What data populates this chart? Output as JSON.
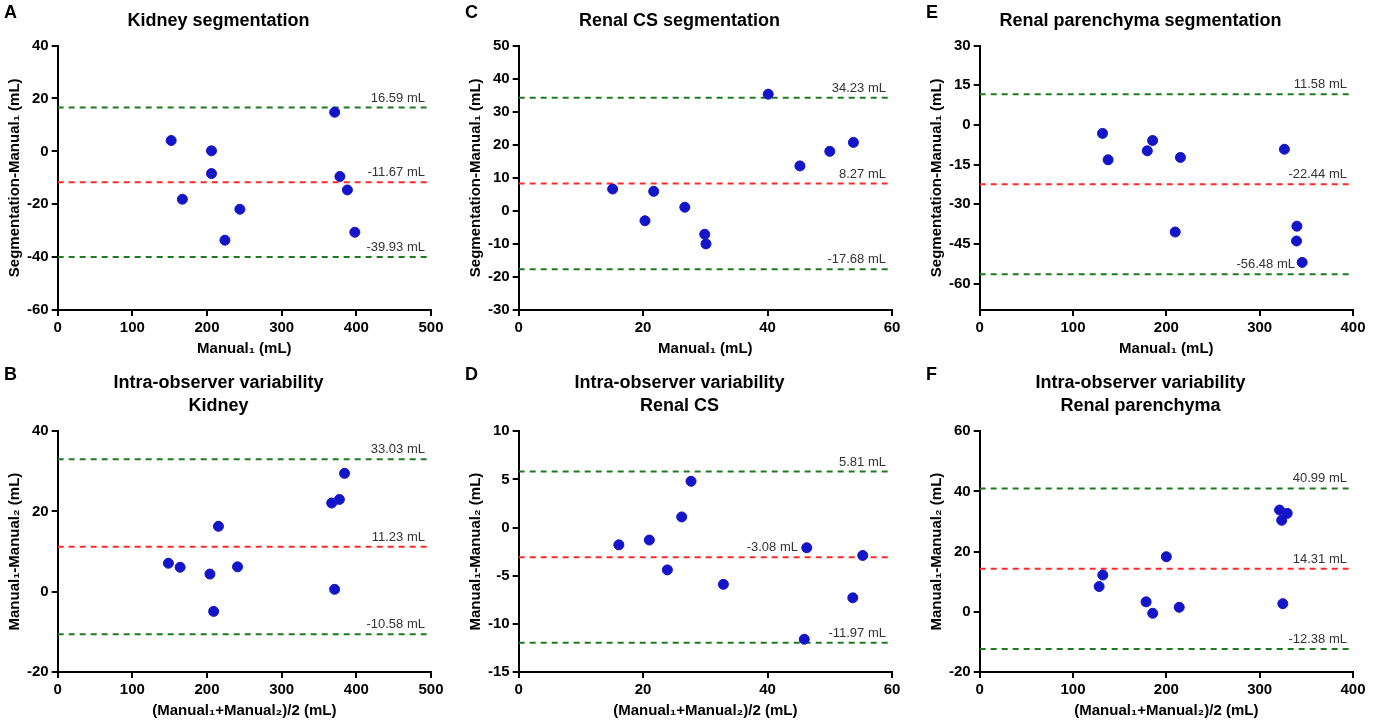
{
  "chart_data": [
    {
      "type": "scatter",
      "title": "Kidney segmentation",
      "xlabel": "Manual₁ (mL)",
      "ylabel": "Segmentation-Manual₁ (mL)",
      "annotations": [
        "A"
      ],
      "x": [
        152,
        167,
        206,
        206,
        224,
        244,
        371,
        378,
        388,
        398
      ],
      "values": [
        4.1,
        -18.1,
        0.2,
        -8.4,
        -33.6,
        -21.9,
        14.8,
        -9.5,
        -14.6,
        -30.6
      ],
      "color": "#1414c8",
      "marker": "circle",
      "grid": false,
      "legend": false,
      "xlim": [
        0,
        500
      ],
      "xticks": [
        0,
        100,
        200,
        300,
        400,
        500
      ],
      "ylim": [
        -60,
        40
      ],
      "yticks": [
        -60,
        -40,
        -20,
        0,
        20,
        40
      ],
      "ref_lines": [
        {
          "axis": "y",
          "value": 16.59,
          "label": "16.59 mL",
          "color": "#1e7a1e",
          "line_style": "dashed"
        },
        {
          "axis": "y",
          "value": -11.67,
          "label": "-11.67 mL",
          "color": "#ff2a2a",
          "line_style": "dashed"
        },
        {
          "axis": "y",
          "value": -39.93,
          "label": "-39.93 mL",
          "color": "#1e7a1e",
          "line_style": "dashed"
        }
      ]
    },
    {
      "type": "scatter",
      "title": "Renal CS segmentation",
      "xlabel": "Manual₁ (mL)",
      "ylabel": "Segmentation-Manual₁ (mL)",
      "annotations": [
        "C"
      ],
      "x": [
        15.1,
        20.3,
        21.7,
        26.7,
        29.9,
        30.1,
        40.1,
        45.2,
        50.0,
        53.8
      ],
      "values": [
        6.6,
        -3.0,
        5.9,
        1.1,
        -7.1,
        -10.0,
        35.3,
        13.6,
        18.0,
        20.7
      ],
      "color": "#1414c8",
      "marker": "circle",
      "grid": false,
      "legend": false,
      "xlim": [
        0,
        60
      ],
      "xticks": [
        0,
        20,
        40,
        60
      ],
      "ylim": [
        -30,
        50
      ],
      "yticks": [
        -30,
        -20,
        -10,
        0,
        10,
        20,
        30,
        40,
        50
      ],
      "ref_lines": [
        {
          "axis": "y",
          "value": 34.23,
          "label": "34.23 mL",
          "color": "#1e7a1e",
          "line_style": "dashed"
        },
        {
          "axis": "y",
          "value": 8.27,
          "label": "8.27 mL",
          "color": "#ff2a2a",
          "line_style": "dashed"
        },
        {
          "axis": "y",
          "value": -17.68,
          "label": "-17.68 mL",
          "color": "#1e7a1e",
          "line_style": "dashed"
        }
      ]
    },
    {
      "type": "scatter",
      "title": "Renal parenchyma segmentation",
      "xlabel": "Manual₁ (mL)",
      "ylabel": "Segmentation-Manual₁ (mL)",
      "annotations": [
        "E"
      ],
      "x": [
        131.6,
        137.6,
        179.6,
        185.3,
        209.5,
        215.1,
        326.5,
        339.9,
        339.5,
        345.5
      ],
      "values": [
        -3.2,
        -13.2,
        -9.8,
        -5.9,
        -40.5,
        -12.3,
        -9.2,
        -38.3,
        -43.9,
        -52.0
      ],
      "color": "#1414c8",
      "marker": "circle",
      "grid": false,
      "legend": false,
      "xlim": [
        0,
        400
      ],
      "xticks": [
        0,
        100,
        200,
        300,
        400
      ],
      "ylim": [
        -70,
        30
      ],
      "yticks": [
        -60,
        -45,
        -30,
        -15,
        0,
        15,
        30
      ],
      "ref_lines": [
        {
          "axis": "y",
          "value": 11.58,
          "label": "11.58 mL",
          "color": "#1e7a1e",
          "line_style": "dashed"
        },
        {
          "axis": "y",
          "value": -22.44,
          "label": "-22.44 mL",
          "color": "#ff2a2a",
          "line_style": "dashed"
        },
        {
          "axis": "y",
          "value": -56.48,
          "label": "-56.48 mL",
          "color": "#1e7a1e",
          "line_style": "dashed"
        }
      ]
    },
    {
      "type": "scatter",
      "title": "Intra-observer variability",
      "subtitle": "Kidney",
      "xlabel": "(Manual₁+Manual₂)/2 (mL)",
      "ylabel": "Manual₁-Manual₂ (mL)",
      "annotations": [
        "B"
      ],
      "x": [
        148.3,
        164.0,
        203.9,
        208.9,
        215.3,
        240.9,
        367.0,
        377.3,
        370.9,
        384.2
      ],
      "values": [
        7.1,
        6.1,
        4.4,
        -4.9,
        16.3,
        6.2,
        22.1,
        23.0,
        0.6,
        29.5
      ],
      "color": "#1414c8",
      "marker": "circle",
      "grid": false,
      "legend": false,
      "xlim": [
        0,
        500
      ],
      "xticks": [
        0,
        100,
        200,
        300,
        400,
        500
      ],
      "ylim": [
        -20,
        40
      ],
      "yticks": [
        -20,
        0,
        20,
        40
      ],
      "ref_lines": [
        {
          "axis": "y",
          "value": 33.03,
          "label": "33.03 mL",
          "color": "#1e7a1e",
          "line_style": "dashed"
        },
        {
          "axis": "y",
          "value": 11.23,
          "label": "11.23 mL",
          "color": "#ff2a2a",
          "line_style": "dashed"
        },
        {
          "axis": "y",
          "value": -10.58,
          "label": "-10.58 mL",
          "color": "#1e7a1e",
          "line_style": "dashed"
        }
      ]
    },
    {
      "type": "scatter",
      "title": "Intra-observer variability",
      "subtitle": "Renal CS",
      "xlabel": "(Manual₁+Manual₂)/2 (mL)",
      "ylabel": "Manual₁-Manual₂ (mL)",
      "annotations": [
        "D"
      ],
      "x": [
        16.1,
        21.0,
        23.9,
        26.2,
        27.7,
        32.9,
        46.3,
        45.9,
        53.7,
        55.3
      ],
      "values": [
        -1.8,
        -1.3,
        -4.4,
        1.1,
        4.8,
        -5.9,
        -2.1,
        -11.6,
        -7.3,
        -2.9
      ],
      "color": "#1414c8",
      "marker": "circle",
      "grid": false,
      "legend": false,
      "xlim": [
        0,
        60
      ],
      "xticks": [
        0,
        20,
        40,
        60
      ],
      "ylim": [
        -15,
        10
      ],
      "yticks": [
        -15,
        -10,
        -5,
        0,
        5,
        10
      ],
      "ref_lines": [
        {
          "axis": "y",
          "value": 5.81,
          "label": "5.81 mL",
          "color": "#1e7a1e",
          "line_style": "dashed"
        },
        {
          "axis": "y",
          "value": -3.08,
          "label": "-3.08 mL",
          "color": "#ff2a2a",
          "line_style": "dashed"
        },
        {
          "axis": "y",
          "value": -11.97,
          "label": "-11.97 mL",
          "color": "#1e7a1e",
          "line_style": "dashed"
        }
      ]
    },
    {
      "type": "scatter",
      "title": "Intra-observer variability",
      "subtitle": "Renal parenchyma",
      "xlabel": "(Manual₁+Manual₂)/2 (mL)",
      "ylabel": "Manual₁-Manual₂ (mL)",
      "annotations": [
        "F"
      ],
      "x": [
        128.0,
        131.9,
        178.3,
        185.4,
        200.0,
        213.8,
        321.3,
        323.6,
        329.5,
        324.8
      ],
      "values": [
        8.4,
        12.2,
        3.3,
        -0.5,
        18.3,
        1.5,
        33.8,
        30.4,
        32.7,
        2.7
      ],
      "color": "#1414c8",
      "marker": "circle",
      "grid": false,
      "legend": false,
      "xlim": [
        0,
        400
      ],
      "xticks": [
        0,
        100,
        200,
        300,
        400
      ],
      "ylim": [
        -20,
        60
      ],
      "yticks": [
        -20,
        0,
        20,
        40,
        60
      ],
      "ref_lines": [
        {
          "axis": "y",
          "value": 40.99,
          "label": "40.99 mL",
          "color": "#1e7a1e",
          "line_style": "dashed"
        },
        {
          "axis": "y",
          "value": 14.31,
          "label": "14.31 mL",
          "color": "#ff2a2a",
          "line_style": "dashed"
        },
        {
          "axis": "y",
          "value": -12.38,
          "label": "-12.38 mL",
          "color": "#1e7a1e",
          "line_style": "dashed"
        }
      ]
    }
  ]
}
